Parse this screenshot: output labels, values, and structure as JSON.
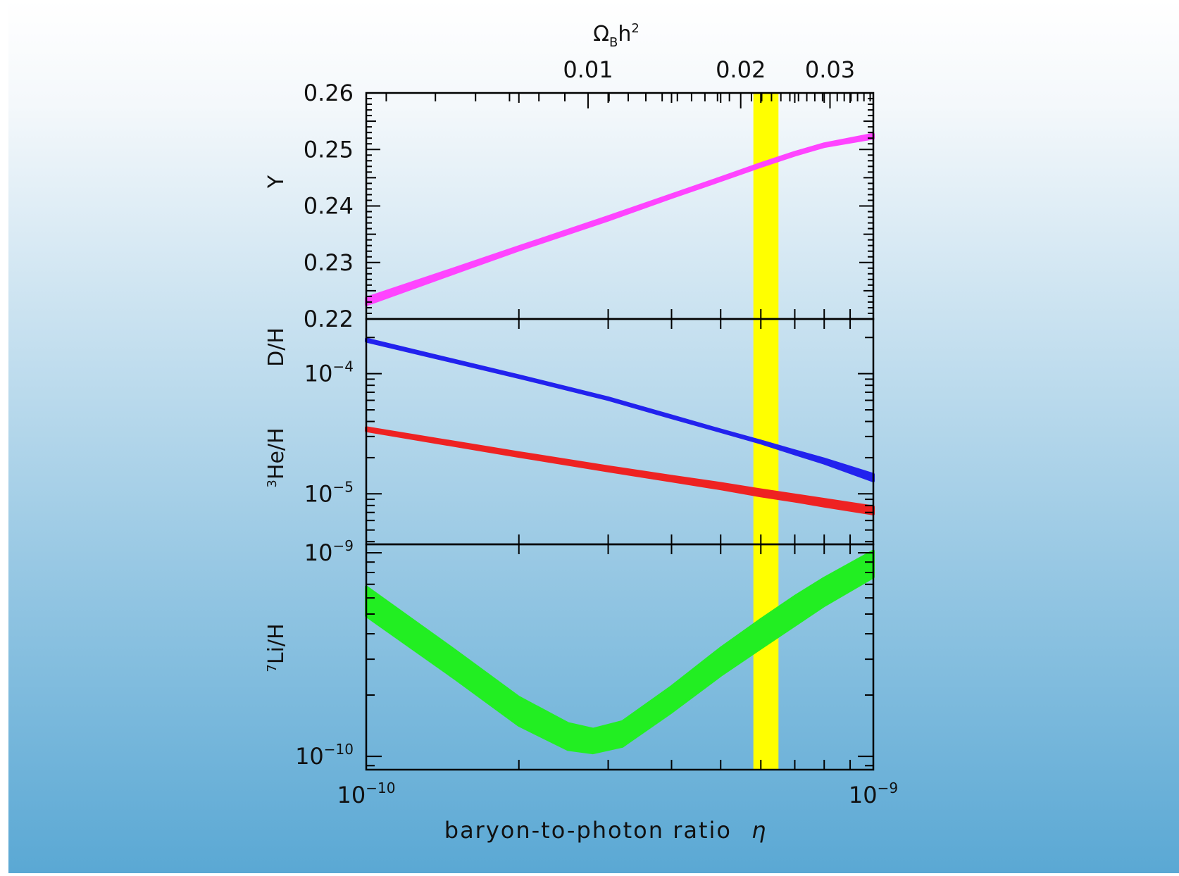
{
  "chart_data": {
    "type": "line",
    "x_axis": {
      "label_main": "baryon-to-photon ratio",
      "label_symbol": "η",
      "scale": "log",
      "range": [
        1e-10,
        1e-09
      ],
      "tick_labels": [
        {
          "value": 1e-10,
          "base": "10",
          "exp": "−10"
        },
        {
          "value": 1e-09,
          "base": "10",
          "exp": "−9"
        }
      ]
    },
    "top_axis": {
      "label_main": "Ω",
      "label_sub": "B",
      "label_tail": "h",
      "label_sup": "2",
      "tick_labels": [
        {
          "value": 0.01,
          "text": "0.01"
        },
        {
          "value": 0.02,
          "text": "0.02"
        },
        {
          "value": 0.03,
          "text": "0.03"
        }
      ]
    },
    "highlight_band": {
      "eta_range": [
        5.8e-10,
        6.5e-10
      ],
      "color": "#ffff00"
    },
    "panels": [
      {
        "ylabel": "Y",
        "yscale": "linear",
        "ylim": [
          0.22,
          0.26
        ],
        "tick_labels": [
          {
            "value": 0.26,
            "text": "0.26"
          },
          {
            "value": 0.25,
            "text": "0.25"
          },
          {
            "value": 0.24,
            "text": "0.24"
          },
          {
            "value": 0.23,
            "text": "0.23"
          },
          {
            "value": 0.22,
            "text": "0.22"
          }
        ],
        "series": [
          {
            "color": "#ff44ff",
            "eta": [
              1e-10,
              1.5e-10,
              2e-10,
              3e-10,
              4e-10,
              5e-10,
              6e-10,
              7e-10,
              8e-10,
              1e-09
            ],
            "low": [
              0.2225,
              0.2282,
              0.2322,
              0.2375,
              0.2415,
              0.2445,
              0.247,
              0.249,
              0.2505,
              0.252
            ],
            "high": [
              0.2237,
              0.229,
              0.2328,
              0.2381,
              0.242,
              0.245,
              0.2475,
              0.2495,
              0.251,
              0.2527
            ]
          }
        ]
      },
      {
        "ylabel_top": "D/H",
        "ylabel_bottom_sup": "3",
        "ylabel_bottom": "He/H",
        "yscale": "log",
        "ylim": [
          3.8e-06,
          0.000285
        ],
        "tick_labels": [
          {
            "value": 0.0001,
            "base": "10",
            "exp": "−4"
          },
          {
            "value": 1e-05,
            "base": "10",
            "exp": "−5"
          }
        ],
        "series": [
          {
            "color": "#2222ee",
            "eta": [
              1e-10,
              2e-10,
              3e-10,
              4e-10,
              5e-10,
              6e-10,
              7e-10,
              8e-10,
              1e-09
            ],
            "low": [
              0.000186,
              9.3e-05,
              6.1e-05,
              4.3e-05,
              3.3e-05,
              2.65e-05,
              2.15e-05,
              1.8e-05,
              1.28e-05
            ],
            "high": [
              0.000194,
              9.6e-05,
              6.3e-05,
              4.45e-05,
              3.4e-05,
              2.75e-05,
              2.28e-05,
              1.95e-05,
              1.45e-05
            ]
          },
          {
            "color": "#ee2222",
            "eta": [
              1e-10,
              2e-10,
              3e-10,
              4e-10,
              5e-10,
              6e-10,
              7e-10,
              8e-10,
              1e-09
            ],
            "low": [
              3.35e-05,
              2.05e-05,
              1.55e-05,
              1.28e-05,
              1.1e-05,
              9.6e-06,
              8.7e-06,
              7.9e-06,
              6.8e-06
            ],
            "high": [
              3.55e-05,
              2.2e-05,
              1.68e-05,
              1.4e-05,
              1.22e-05,
              1.08e-05,
              9.8e-06,
              9e-06,
              7.8e-06
            ]
          }
        ]
      },
      {
        "ylabel_sup": "7",
        "ylabel": "Li/H",
        "yscale": "log",
        "ylim": [
          8.6e-11,
          1.1e-09
        ],
        "tick_labels": [
          {
            "value": 1e-09,
            "base": "10",
            "exp": "−9"
          },
          {
            "value": 1e-10,
            "base": "10",
            "exp": "−10"
          }
        ],
        "series": [
          {
            "color": "#22ee22",
            "eta": [
              1e-10,
              1.5e-10,
              2e-10,
              2.5e-10,
              2.8e-10,
              3.2e-10,
              4e-10,
              5e-10,
              6e-10,
              7e-10,
              8e-10,
              1e-09
            ],
            "low": [
              4.9e-10,
              2.4e-10,
              1.42e-10,
              1.08e-10,
              1.04e-10,
              1.12e-10,
              1.65e-10,
              2.5e-10,
              3.4e-10,
              4.4e-10,
              5.5e-10,
              7.6e-10
            ],
            "high": [
              6.8e-10,
              3.3e-10,
              1.95e-10,
              1.45e-10,
              1.36e-10,
              1.48e-10,
              2.2e-10,
              3.4e-10,
              4.7e-10,
              6.1e-10,
              7.5e-10,
              1.02e-09
            ]
          }
        ]
      }
    ]
  },
  "colors": {
    "bg_top": "#ffffff",
    "bg_bottom": "#5aa8d4"
  }
}
